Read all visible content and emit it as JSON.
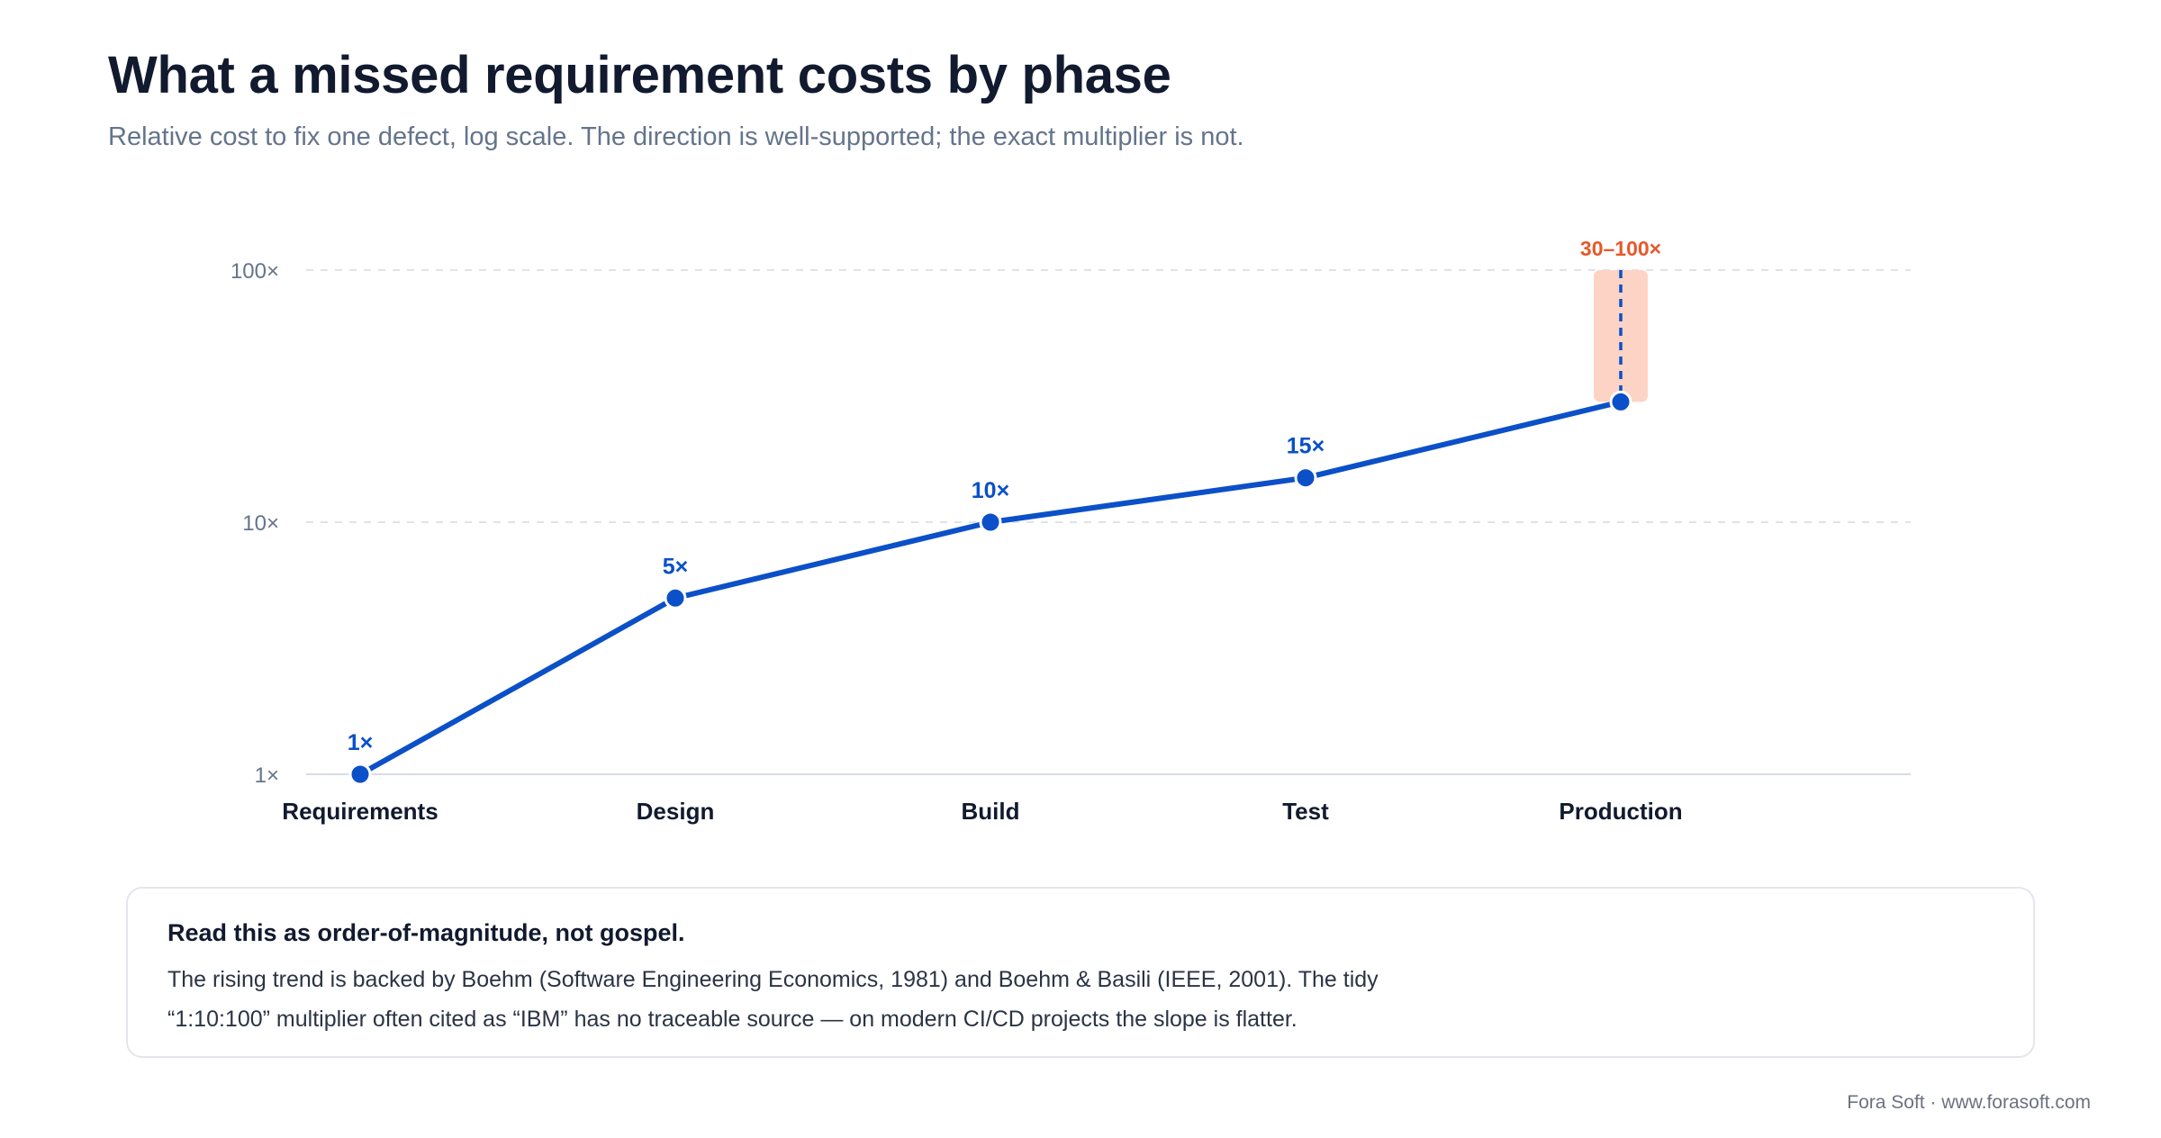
{
  "header": {
    "title": "What a missed requirement costs by phase",
    "subtitle": "Relative cost to fix one defect, log scale. The direction is well-supported; the exact multiplier is not."
  },
  "chart_data": {
    "type": "line",
    "scale": "log",
    "categories": [
      "Requirements",
      "Design",
      "Build",
      "Test",
      "Production"
    ],
    "values": [
      1,
      5,
      10,
      15,
      30
    ],
    "data_labels": [
      "1×",
      "5×",
      "10×",
      "15×",
      ""
    ],
    "range": {
      "category": "Production",
      "low": 30,
      "high": 100,
      "label": "30–100×"
    },
    "y_ticks": [
      1,
      10,
      100
    ],
    "y_tick_labels": [
      "1×",
      "10×",
      "100×"
    ],
    "ylim": [
      1,
      100
    ],
    "grid": true,
    "colors": {
      "line": "#0b50c8",
      "range_fill": "#fcd3c5",
      "range_label": "#e8582b",
      "grid": "#dfe3ea",
      "axis": "#d8dce3"
    }
  },
  "note": {
    "heading": "Read this as order-of-magnitude, not gospel.",
    "line1": "The rising trend is backed by Boehm (Software Engineering Economics, 1981) and Boehm & Basili (IEEE, 2001). The tidy",
    "line2": "“1:10:100” multiplier often cited as “IBM” has no traceable source — on modern CI/CD projects the slope is flatter."
  },
  "footer": {
    "credit": "Fora Soft · www.forasoft.com"
  }
}
